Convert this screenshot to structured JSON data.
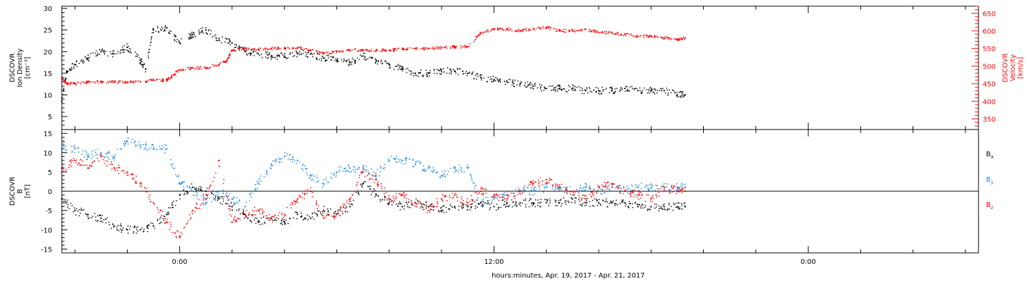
{
  "figure": {
    "xlabel": "hours:minutes, Apr. 19, 2017 - Apr. 21, 2017",
    "x_tick_labels": [
      "0:00",
      "12:00",
      "0:00"
    ]
  },
  "chart_data": [
    {
      "type": "scatter",
      "panel": "top",
      "x_unit": "hours since 2017-04-20 00:00",
      "xlim": [
        -4.5,
        30.5
      ],
      "ylabel_left": [
        "DSCOVR",
        "Ion Density",
        "[cm⁻³]"
      ],
      "ylabel_right": [
        "DSCOVR",
        "Velocity",
        "[km/s]"
      ],
      "ylim_left": [
        2,
        30.5
      ],
      "ylim_right": [
        320,
        670
      ],
      "yticks_left": [
        5,
        10,
        15,
        20,
        25,
        30
      ],
      "yticks_right": [
        350,
        400,
        450,
        500,
        550,
        600,
        650
      ],
      "series": [
        {
          "name": "Ion Density",
          "axis": "left",
          "color": "#000000",
          "x": [
            -4.5,
            -4.3,
            -4.0,
            -3.5,
            -3.0,
            -2.5,
            -2.0,
            -1.5,
            -1.3,
            -1.0,
            -0.5,
            0.0,
            0.5,
            1.0,
            1.5,
            2.0,
            2.5,
            3.0,
            3.5,
            4.0,
            4.5,
            5.0,
            5.5,
            6.0,
            6.5,
            7.0,
            7.5,
            8.0,
            8.5,
            9.0,
            9.5,
            10.0,
            10.5,
            11.0,
            11.5,
            12.0,
            12.5,
            13.0,
            13.5,
            14.0,
            14.5,
            15.0,
            15.5,
            16.0,
            16.5,
            17.0,
            17.5,
            18.0,
            18.5,
            19.0,
            19.3
          ],
          "y": [
            8.5,
            15.5,
            17,
            18.5,
            20,
            19.5,
            21,
            18,
            16,
            25,
            25.5,
            22,
            24,
            25,
            23,
            22,
            20,
            19.5,
            19,
            19,
            19.5,
            19.5,
            18.5,
            18,
            17.5,
            19,
            18,
            17,
            16,
            15,
            15,
            15.5,
            15.5,
            15,
            14,
            13.5,
            13,
            12.5,
            12,
            11.5,
            11.5,
            11.5,
            11,
            11,
            11,
            11.5,
            11,
            11,
            11,
            10,
            10
          ]
        },
        {
          "name": "Velocity",
          "axis": "right",
          "color": "#ff0000",
          "x": [
            -4.5,
            -4.3,
            -4.0,
            -3.5,
            -3.0,
            -2.5,
            -2.0,
            -1.5,
            -1.0,
            -0.5,
            -0.3,
            0.0,
            0.5,
            1.0,
            1.5,
            1.8,
            2.0,
            2.5,
            3.0,
            3.5,
            4.0,
            4.5,
            5.0,
            5.5,
            6.0,
            6.5,
            7.0,
            7.5,
            8.0,
            8.5,
            9.0,
            9.5,
            10.0,
            10.5,
            11.0,
            11.5,
            12.0,
            12.5,
            13.0,
            13.5,
            14.0,
            14.5,
            15.0,
            15.5,
            16.0,
            16.5,
            17.0,
            17.5,
            18.0,
            18.5,
            19.0,
            19.3
          ],
          "y": [
            465,
            450,
            450,
            455,
            455,
            455,
            455,
            455,
            460,
            460,
            470,
            490,
            495,
            495,
            505,
            515,
            545,
            550,
            548,
            550,
            550,
            552,
            545,
            535,
            540,
            545,
            545,
            545,
            545,
            548,
            550,
            550,
            552,
            555,
            555,
            595,
            605,
            605,
            600,
            605,
            610,
            600,
            600,
            605,
            595,
            595,
            590,
            585,
            585,
            580,
            575,
            580
          ]
        }
      ]
    },
    {
      "type": "scatter",
      "panel": "bottom",
      "x_unit": "hours since 2017-04-20 00:00",
      "xlim": [
        -4.5,
        30.5
      ],
      "ylabel_left": [
        "DSCOVR",
        "B",
        "[nT]"
      ],
      "ylim": [
        -16,
        16
      ],
      "yticks": [
        -15,
        -10,
        -5,
        0,
        5,
        10,
        15
      ],
      "reference_line": 0,
      "series": [
        {
          "name": "Bx",
          "legend_label": "B",
          "legend_sub": "x",
          "color": "#000000",
          "x": [
            -4.5,
            -4.0,
            -3.5,
            -3.0,
            -2.5,
            -2.0,
            -1.5,
            -1.0,
            -0.5,
            0.0,
            0.5,
            1.0,
            1.5,
            2.0,
            2.5,
            3.0,
            3.5,
            4.0,
            4.5,
            5.0,
            5.5,
            6.0,
            6.5,
            7.0,
            7.5,
            8.0,
            8.5,
            9.0,
            9.5,
            10.0,
            10.5,
            11.0,
            11.5,
            12.0,
            12.5,
            13.0,
            13.5,
            14.0,
            14.5,
            15.0,
            15.5,
            16.0,
            16.5,
            17.0,
            17.5,
            18.0,
            18.5,
            19.0,
            19.3
          ],
          "y": [
            -2,
            -5,
            -6,
            -7,
            -9,
            -10,
            -10,
            -9,
            -6,
            -1,
            1,
            0,
            -2,
            -4,
            -6,
            -8,
            -7,
            -8,
            -6,
            -7,
            -5,
            -6,
            -4,
            2,
            -1,
            -3,
            -4,
            -3,
            -4,
            -5,
            -4,
            -4,
            -3,
            -4,
            -3,
            -3,
            -3,
            -3,
            -3,
            -2,
            -3,
            -3,
            -3,
            -3,
            -4,
            -4,
            -4,
            -4,
            -4
          ]
        },
        {
          "name": "By",
          "legend_label": "B",
          "legend_sub": "y",
          "color": "#1e88e5",
          "x": [
            -4.5,
            -4.0,
            -3.5,
            -3.0,
            -2.5,
            -2.0,
            -1.5,
            -1.0,
            -0.5,
            0.0,
            0.5,
            1.0,
            1.5,
            2.0,
            2.5,
            3.0,
            3.5,
            4.0,
            4.5,
            5.0,
            5.5,
            6.0,
            6.5,
            7.0,
            7.5,
            8.0,
            8.5,
            9.0,
            9.5,
            10.0,
            10.5,
            11.0,
            11.5,
            12.0,
            12.5,
            13.0,
            13.5,
            14.0,
            14.5,
            15.0,
            15.5,
            16.0,
            16.5,
            17.0,
            17.5,
            18.0,
            18.5,
            19.0,
            19.3
          ],
          "y": [
            12,
            11,
            9,
            10,
            9,
            13,
            12,
            11,
            11,
            2,
            0,
            -3,
            0,
            -2,
            -4,
            2,
            7,
            9,
            8,
            4,
            2,
            5,
            6,
            6,
            4,
            8,
            8,
            7,
            6,
            4,
            6,
            6,
            -3,
            -2,
            -1,
            0,
            0,
            1,
            1,
            0,
            1,
            0,
            1,
            0,
            1,
            1,
            1,
            1,
            1
          ]
        },
        {
          "name": "Bz",
          "legend_label": "B",
          "legend_sub": "z",
          "color": "#ff0000",
          "x": [
            -4.5,
            -4.0,
            -3.5,
            -3.0,
            -2.5,
            -2.0,
            -1.5,
            -1.0,
            -0.5,
            0.0,
            0.5,
            1.0,
            1.5,
            2.0,
            2.5,
            3.0,
            3.5,
            4.0,
            4.5,
            5.0,
            5.5,
            6.0,
            6.5,
            7.0,
            7.5,
            8.0,
            8.5,
            9.0,
            9.5,
            10.0,
            10.5,
            11.0,
            11.5,
            12.0,
            12.5,
            13.0,
            13.5,
            14.0,
            14.5,
            15.0,
            15.5,
            16.0,
            16.5,
            17.0,
            17.5,
            18.0,
            18.5,
            19.0,
            19.3
          ],
          "y": [
            5,
            8,
            6,
            9,
            6,
            5,
            2,
            -3,
            -8,
            -12,
            -5,
            -2,
            8,
            -8,
            -6,
            -5,
            -7,
            -6,
            -2,
            0,
            -7,
            -6,
            -2,
            5,
            3,
            -2,
            -1,
            -3,
            -5,
            -2,
            -1,
            -3,
            0,
            -1,
            -2,
            0,
            2,
            3,
            1,
            0,
            -2,
            1,
            2,
            0,
            -1,
            -2,
            1,
            0,
            0
          ]
        }
      ]
    }
  ]
}
